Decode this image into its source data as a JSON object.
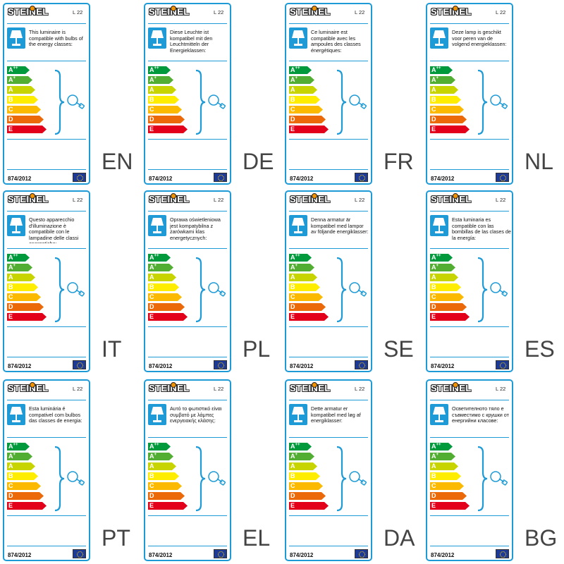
{
  "labels": [
    {
      "brand": "STEINEL",
      "model": "L 22",
      "description": "This luminaire is compatible with bulbs of the energy classes:",
      "language": "EN",
      "regulation": "874/2012"
    },
    {
      "brand": "STEINEL",
      "model": "L 22",
      "description": "Diese Leuchte ist kompatibel mit den Leuchtmitteln der Energieklassen:",
      "language": "DE",
      "regulation": "874/2012"
    },
    {
      "brand": "STEINEL",
      "model": "L 22",
      "description": "Ce luminaire est compatible avec les ampoules des classes énergétiques:",
      "language": "FR",
      "regulation": "874/2012"
    },
    {
      "brand": "STEINEL",
      "model": "L 22",
      "description": "Deze lamp is geschikt voor peren van de volgend energieklassen:",
      "language": "NL",
      "regulation": "874/2012"
    },
    {
      "brand": "STEINEL",
      "model": "L 22",
      "description": "Questo apparecchio d'illuminazione è compatibile con le lampadine delle classi energetiche:",
      "language": "IT",
      "regulation": "874/2012"
    },
    {
      "brand": "STEINEL",
      "model": "L 22",
      "description": "Oprawa oświetleniowa jest kompatybilna z żarówkami klas energetycznych:",
      "language": "PL",
      "regulation": "874/2012"
    },
    {
      "brand": "STEINEL",
      "model": "L 22",
      "description": "Denna armatur är kompatibel med lampor av följande energiklasser:",
      "language": "SE",
      "regulation": "874/2012"
    },
    {
      "brand": "STEINEL",
      "model": "L 22",
      "description": "Esta luminaria es compatible con las bombillas de las clases de la energía:",
      "language": "ES",
      "regulation": "874/2012"
    },
    {
      "brand": "STEINEL",
      "model": "L 22",
      "description": "Esta luminária é compativel com bulbos das classes de energia:",
      "language": "PT",
      "regulation": "874/2012"
    },
    {
      "brand": "STEINEL",
      "model": "L 22",
      "description": "Αυτό το φωτιστικό είναι συμβατό με λάμπες ενεργειακής κλάσης:",
      "language": "EL",
      "regulation": "874/2012"
    },
    {
      "brand": "STEINEL",
      "model": "L 22",
      "description": "Dette armatur er kompatibel med løg af energiklasser:",
      "language": "DA",
      "regulation": "874/2012"
    },
    {
      "brand": "STEINEL",
      "model": "L 22",
      "description": "Осветителното тяло е съвместимо с крушки от енергийни класове:",
      "language": "BG",
      "regulation": "874/2012"
    }
  ],
  "energy_classes": [
    {
      "letter": "A",
      "sup": "++",
      "color": "#009a3d"
    },
    {
      "letter": "A",
      "sup": "+",
      "color": "#52ae32"
    },
    {
      "letter": "A",
      "sup": "",
      "color": "#c8d400"
    },
    {
      "letter": "B",
      "sup": "",
      "color": "#ffed00"
    },
    {
      "letter": "C",
      "sup": "",
      "color": "#fbba00"
    },
    {
      "letter": "D",
      "sup": "",
      "color": "#eb6909"
    },
    {
      "letter": "E",
      "sup": "",
      "color": "#e2001a"
    }
  ],
  "colors": {
    "frame": "#1e9bd7",
    "eu_blue": "#1d3b96",
    "eu_star": "#ffcc00",
    "brand_dot": "#f39200"
  },
  "icons": {
    "lamp": "table-lamp-icon",
    "bulb": "light-bulb-icon",
    "flag": "eu-flag-icon"
  }
}
